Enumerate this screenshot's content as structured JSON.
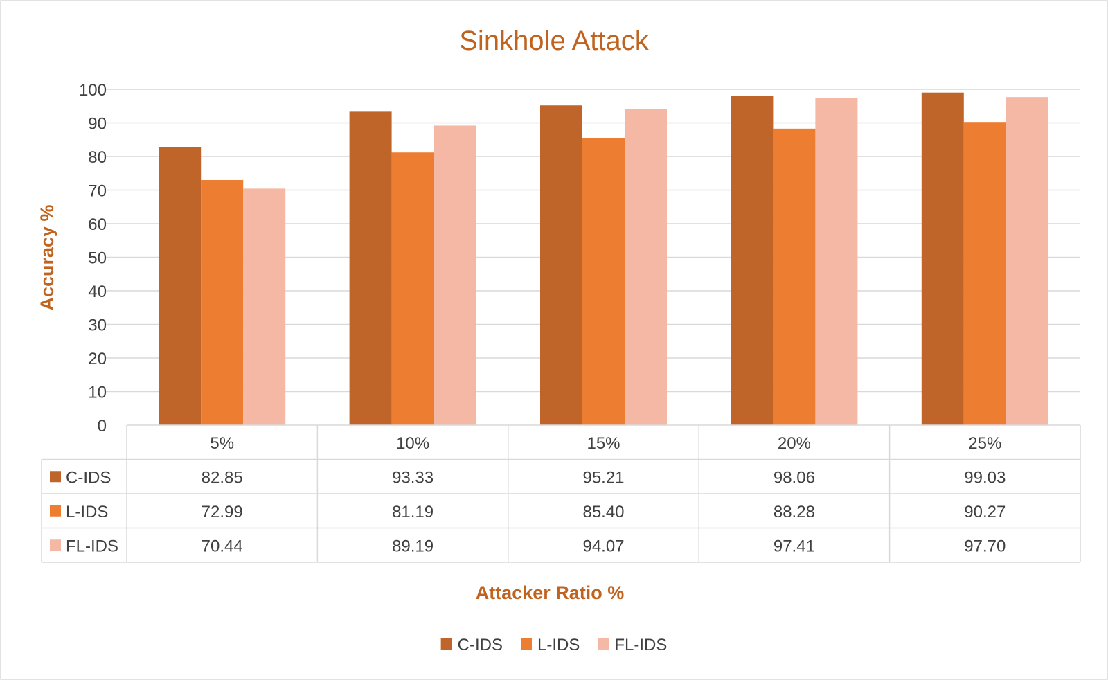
{
  "chart_data": {
    "type": "bar",
    "title": "Sinkhole Attack",
    "xlabel": "Attacker Ratio %",
    "ylabel": "Accuracy %",
    "ylim": [
      0,
      100
    ],
    "yticks": [
      "0",
      "10",
      "20",
      "30",
      "40",
      "50",
      "60",
      "70",
      "80",
      "90",
      "100"
    ],
    "categories": [
      "5%",
      "10%",
      "15%",
      "20%",
      "25%"
    ],
    "series": [
      {
        "name": "C-IDS",
        "color": "#C0652A",
        "values": [
          82.85,
          93.33,
          95.21,
          98.06,
          99.03
        ],
        "labels": [
          "82.85",
          "93.33",
          "95.21",
          "98.06",
          "99.03"
        ]
      },
      {
        "name": "L-IDS",
        "color": "#ED7D31",
        "values": [
          72.99,
          81.19,
          85.4,
          88.28,
          90.27
        ],
        "labels": [
          "72.99",
          "81.19",
          "85.40",
          "88.28",
          "90.27"
        ]
      },
      {
        "name": "FL-IDS",
        "color": "#F4B8A4",
        "values": [
          70.44,
          89.19,
          94.07,
          97.41,
          97.7
        ],
        "labels": [
          "70.44",
          "89.19",
          "94.07",
          "97.41",
          "97.70"
        ]
      }
    ],
    "grid": true,
    "legend": "bottom",
    "data_table": true
  }
}
